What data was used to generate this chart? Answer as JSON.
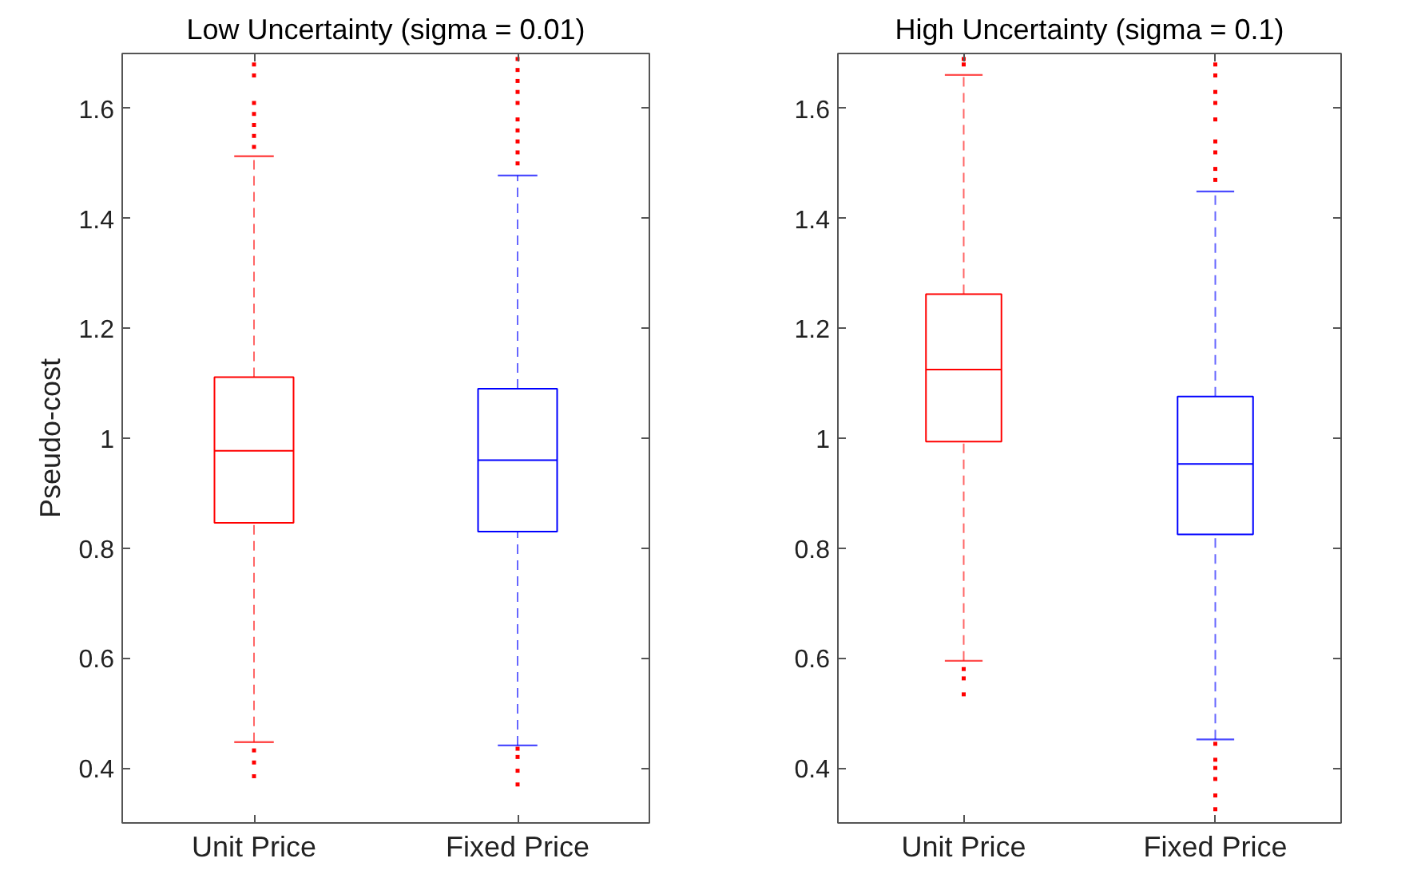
{
  "chart_data": [
    {
      "type": "box",
      "title": "Low Uncertainty (sigma = 0.01)",
      "ylabel": "Pseudo-cost",
      "categories": [
        "Unit Price",
        "Fixed Price"
      ],
      "colors": [
        "#ff0000",
        "#0000ff"
      ],
      "ylim": [
        0.3,
        1.7
      ],
      "yticks": [
        0.4,
        0.6,
        0.8,
        1,
        1.2,
        1.4,
        1.6
      ],
      "grid": false,
      "line_style": "dashed",
      "boxes": [
        {
          "low": 0.447,
          "q1": 0.846,
          "median": 0.977,
          "q3": 1.111,
          "high": 1.513,
          "outliers": [
            1.68,
            1.66,
            1.61,
            1.59,
            1.57,
            1.55,
            1.53,
            0.432,
            0.41,
            0.385
          ]
        },
        {
          "low": 0.441,
          "q1": 0.83,
          "median": 0.96,
          "q3": 1.09,
          "high": 1.478,
          "outliers": [
            1.69,
            1.67,
            1.65,
            1.63,
            1.61,
            1.58,
            1.56,
            1.54,
            1.52,
            1.5,
            0.435,
            0.42,
            0.395,
            0.37
          ]
        }
      ]
    },
    {
      "type": "box",
      "title": "High Uncertainty (sigma = 0.1)",
      "categories": [
        "Unit Price",
        "Fixed Price"
      ],
      "colors": [
        "#ff0000",
        "#0000ff"
      ],
      "ylim": [
        0.3,
        1.7
      ],
      "yticks": [
        0.4,
        0.6,
        0.8,
        1,
        1.2,
        1.4,
        1.6
      ],
      "grid": false,
      "line_style": "dashed",
      "boxes": [
        {
          "low": 0.595,
          "q1": 0.994,
          "median": 1.125,
          "q3": 1.262,
          "high": 1.661,
          "outliers": [
            1.69,
            1.68,
            0.58,
            0.563,
            0.534
          ]
        },
        {
          "low": 0.452,
          "q1": 0.825,
          "median": 0.953,
          "q3": 1.076,
          "high": 1.449,
          "outliers": [
            1.68,
            1.66,
            1.63,
            1.61,
            1.58,
            1.54,
            1.52,
            1.49,
            1.47,
            0.444,
            0.415,
            0.4,
            0.38,
            0.35,
            0.325
          ]
        }
      ]
    }
  ]
}
